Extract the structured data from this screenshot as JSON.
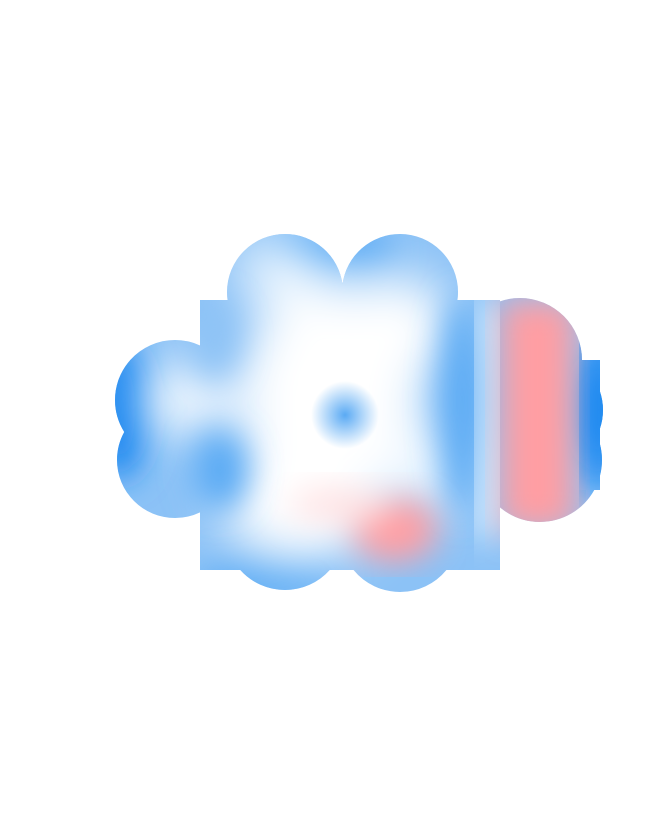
{
  "image": {
    "background_color": "#ffffff",
    "subject": "electrostatic-potential-surface",
    "colors": {
      "strong_blue": "#1e88f0",
      "blue": "#5aaaf4",
      "light_blue": "#a9d2fa",
      "pale_blue": "#e3f1fd",
      "white": "#ffffff",
      "light_red": "#ffc4c6",
      "red": "#ff9ea3"
    }
  }
}
